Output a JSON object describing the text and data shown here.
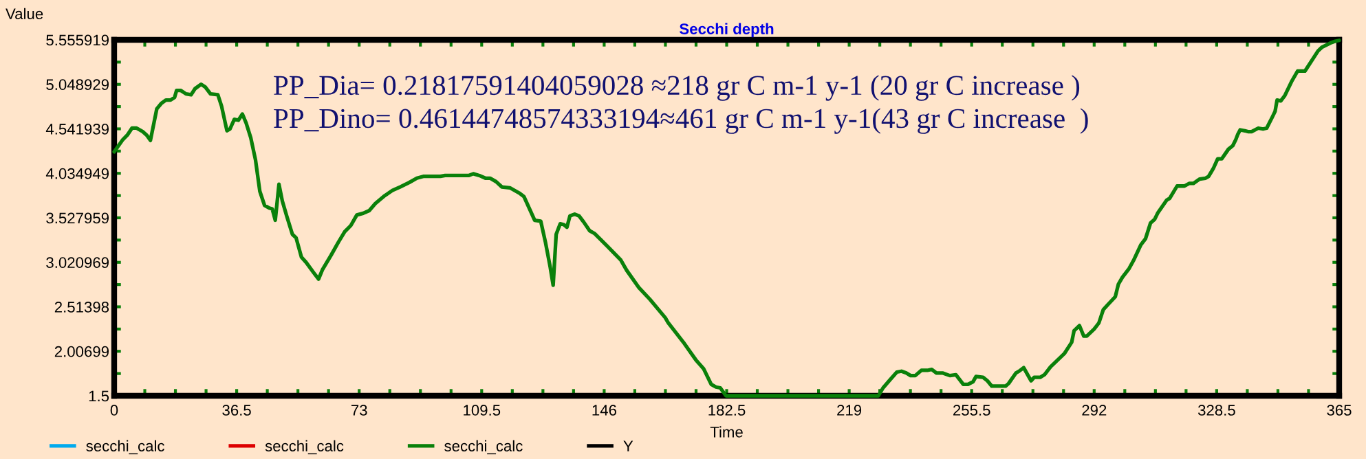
{
  "chart_data": {
    "type": "line",
    "title": "Secchi depth",
    "xlabel": "Time",
    "ylabel": "Value",
    "annotations": [
      "PP_Dia= 0.21817591404059028 ≈218 gr C m-1 y-1 (20 gr C increase )",
      "PP_Dino= 0.46144748574333194≈461 gr C m-1 y-1(43 gr C increase  )"
    ],
    "xlim": [
      0,
      365
    ],
    "xticks": [
      0,
      36.5,
      73,
      109.5,
      146,
      182.5,
      219,
      255.5,
      292,
      328.5,
      365
    ],
    "ylim": [
      1.5,
      5.555919
    ],
    "yticks": [
      1.5,
      2.00699,
      2.51398,
      3.020969,
      3.527959,
      4.034949,
      4.541939,
      5.048929,
      5.555919
    ],
    "legend": "bottom",
    "series": [
      {
        "name": "secchi_calc",
        "color": "#00aaee"
      },
      {
        "name": "secchi_calc",
        "color": "#dd0000"
      },
      {
        "name": "secchi_calc",
        "color": "#0a800a",
        "x": [
          0,
          2.6,
          3.9,
          5.3,
          6.7,
          8.5,
          9.7,
          10.8,
          12.7,
          14.0,
          15.4,
          16.8,
          18.0,
          18.6,
          19.8,
          21.4,
          22.9,
          24.1,
          25.9,
          27.1,
          28.7,
          30.9,
          32.0,
          33.6,
          34.5,
          35.8,
          37.0,
          38.2,
          39.3,
          40.7,
          42.1,
          43.4,
          44.8,
          46.2,
          47.1,
          48.0,
          49.1,
          50.1,
          51.4,
          53.1,
          54.2,
          55.8,
          57.2,
          59.5,
          60.9,
          62.1,
          64.6,
          66.8,
          68.7,
          70.5,
          72.3,
          74.2,
          76.0,
          77.8,
          80.6,
          82.9,
          85.2,
          87.9,
          90.2,
          92.1,
          97.2,
          98.6,
          105.6,
          107.0,
          108.8,
          110.6,
          112.0,
          113.8,
          115.5,
          117.9,
          120.7,
          122.1,
          123.4,
          125.3,
          127.1,
          128.5,
          129.9,
          130.8,
          131.7,
          132.9,
          134.0,
          134.9,
          135.8,
          137.2,
          138.5,
          139.9,
          141.7,
          143.1,
          146.8,
          150.9,
          152.7,
          156.4,
          159.6,
          164.2,
          165.1,
          169.6,
          173.3,
          175.6,
          177.9,
          179.3,
          180.6,
          182.3,
          227.7,
          229.1,
          230.9,
          233.2,
          234.6,
          236.0,
          237.3,
          238.7,
          240.5,
          242.3,
          243.6,
          245.0,
          246.8,
          249.0,
          250.8,
          253.0,
          254.4,
          255.9,
          256.8,
          258.9,
          260.2,
          261.5,
          265.6,
          266.5,
          268.7,
          269.6,
          271.0,
          273.2,
          274.1,
          275.9,
          277.2,
          279.0,
          283.1,
          285.3,
          286.0,
          287.6,
          288.9,
          289.8,
          292.0,
          293.4,
          294.7,
          296.1,
          298.3,
          299.2,
          300.4,
          302.4,
          303.7,
          305.9,
          307.3,
          308.8,
          310.0,
          310.9,
          313.6,
          314.5,
          316.7,
          318.9,
          320.3,
          321.6,
          323.4,
          325.2,
          326.1,
          327.5,
          328.8,
          330.0,
          332.0,
          333.3,
          334.2,
          334.8,
          335.5,
          336.9,
          337.8,
          338.9,
          340.9,
          342.3,
          343.4,
          345.0,
          345.9,
          346.5,
          347.6,
          348.8,
          350.8,
          352.6,
          354.8,
          358.7,
          359.8,
          362.4,
          363.8,
          365
        ],
        "values": [
          4.28,
          4.42,
          4.47,
          4.55,
          4.55,
          4.51,
          4.47,
          4.41,
          4.77,
          4.83,
          4.87,
          4.87,
          4.9,
          4.98,
          4.98,
          4.94,
          4.93,
          5.0,
          5.05,
          5.02,
          4.94,
          4.93,
          4.8,
          4.52,
          4.54,
          4.65,
          4.64,
          4.71,
          4.61,
          4.44,
          4.19,
          3.83,
          3.67,
          3.64,
          3.63,
          3.5,
          3.91,
          3.72,
          3.55,
          3.34,
          3.3,
          3.08,
          3.02,
          2.9,
          2.83,
          2.94,
          3.1,
          3.25,
          3.37,
          3.44,
          3.56,
          3.58,
          3.61,
          3.69,
          3.78,
          3.84,
          3.88,
          3.93,
          3.98,
          4.0,
          4.0,
          4.01,
          4.01,
          4.03,
          4.01,
          3.98,
          3.98,
          3.94,
          3.88,
          3.87,
          3.81,
          3.77,
          3.66,
          3.5,
          3.49,
          3.25,
          2.97,
          2.76,
          3.34,
          3.46,
          3.45,
          3.42,
          3.55,
          3.57,
          3.55,
          3.48,
          3.38,
          3.35,
          3.21,
          3.05,
          2.93,
          2.73,
          2.6,
          2.39,
          2.33,
          2.11,
          1.91,
          1.81,
          1.63,
          1.6,
          1.59,
          1.5,
          1.5,
          1.59,
          1.67,
          1.77,
          1.78,
          1.76,
          1.73,
          1.73,
          1.79,
          1.79,
          1.8,
          1.76,
          1.76,
          1.73,
          1.74,
          1.63,
          1.63,
          1.66,
          1.72,
          1.71,
          1.67,
          1.61,
          1.61,
          1.64,
          1.76,
          1.78,
          1.82,
          1.67,
          1.71,
          1.71,
          1.74,
          1.83,
          1.98,
          2.11,
          2.24,
          2.3,
          2.18,
          2.18,
          2.26,
          2.33,
          2.48,
          2.54,
          2.63,
          2.77,
          2.85,
          2.95,
          3.04,
          3.22,
          3.29,
          3.47,
          3.51,
          3.58,
          3.73,
          3.75,
          3.89,
          3.89,
          3.92,
          3.92,
          3.97,
          3.98,
          4.0,
          4.09,
          4.2,
          4.2,
          4.31,
          4.35,
          4.42,
          4.48,
          4.53,
          4.52,
          4.51,
          4.51,
          4.55,
          4.54,
          4.55,
          4.67,
          4.74,
          4.87,
          4.86,
          4.92,
          5.08,
          5.2,
          5.2,
          5.43,
          5.47,
          5.52,
          5.54,
          5.55
        ]
      },
      {
        "name": "Y",
        "color": "#000000"
      }
    ]
  }
}
